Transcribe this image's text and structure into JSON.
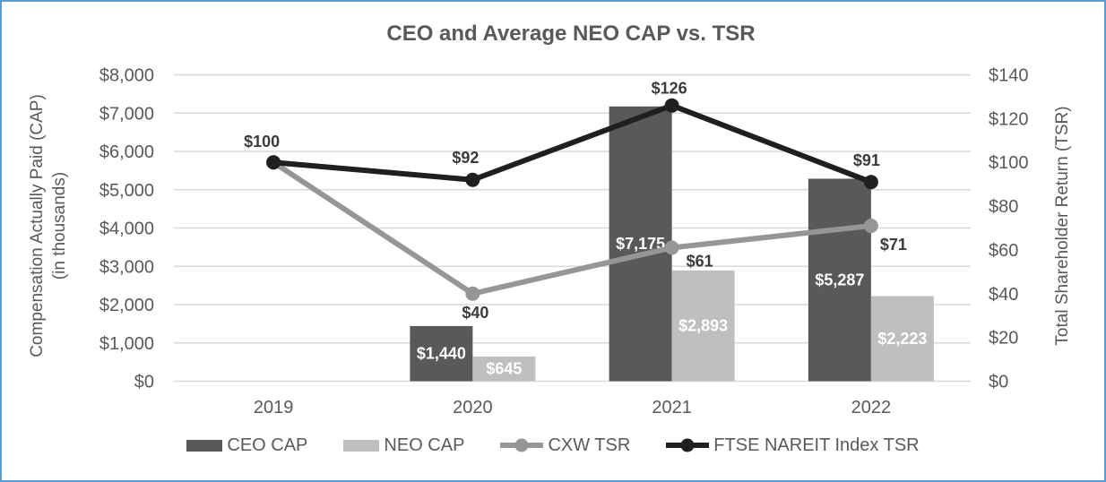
{
  "frame": {
    "border_color": "#5B9BD5",
    "background": "#FFFFFF"
  },
  "chart_data": {
    "type": "combo-bar-line",
    "title": "CEO and Average NEO CAP vs. TSR",
    "categories": [
      "2019",
      "2020",
      "2021",
      "2022"
    ],
    "bar_series": [
      {
        "name": "CEO CAP",
        "color": "#595959",
        "axis": "left",
        "values": [
          null,
          1440,
          7175,
          5287
        ],
        "labels": [
          "",
          "$1,440",
          "$7,175",
          "$5,287"
        ]
      },
      {
        "name": "NEO CAP",
        "color": "#BFBFBF",
        "axis": "left",
        "values": [
          null,
          645,
          2893,
          2223
        ],
        "labels": [
          "",
          "$645",
          "$2,893",
          "$2,223"
        ]
      }
    ],
    "line_series": [
      {
        "name": "CXW TSR",
        "color": "#969696",
        "axis": "right",
        "values": [
          100,
          40,
          61,
          71
        ],
        "labels": [
          "$100",
          "$40",
          "$61",
          "$71"
        ]
      },
      {
        "name": "FTSE NAREIT Index TSR",
        "color": "#1F1F1F",
        "axis": "right",
        "values": [
          100,
          92,
          126,
          91
        ],
        "labels": [
          "",
          "$92",
          "$126",
          "$91"
        ]
      }
    ],
    "left_axis": {
      "title_line1": "Compensation Actually Paid (CAP)",
      "title_line2": "(in thousands)",
      "min": 0,
      "max": 8000,
      "step": 1000,
      "tick_labels": [
        "$0",
        "$1,000",
        "$2,000",
        "$3,000",
        "$4,000",
        "$5,000",
        "$6,000",
        "$7,000",
        "$8,000"
      ]
    },
    "right_axis": {
      "title": "Total Shareholder Return (TSR)",
      "min": 0,
      "max": 140,
      "step": 20,
      "tick_labels": [
        "$0",
        "$20",
        "$40",
        "$60",
        "$80",
        "$100",
        "$120",
        "$140"
      ]
    },
    "legend": {
      "items": [
        {
          "label": "CEO CAP",
          "type": "bar",
          "color": "#595959"
        },
        {
          "label": "NEO CAP",
          "type": "bar",
          "color": "#BFBFBF"
        },
        {
          "label": "CXW TSR",
          "type": "line",
          "color": "#969696"
        },
        {
          "label": "FTSE NAREIT Index TSR",
          "type": "line",
          "color": "#1F1F1F"
        }
      ]
    },
    "styles": {
      "gridline_color": "#D9D9D9",
      "axis_text_color": "#595959",
      "title_color": "#595959",
      "line_label_color": "#3B3B3B",
      "bar_label_color": "#FFFFFF"
    },
    "layout_hints": {
      "grid": "horizontal",
      "legend_position": "bottom",
      "bars_missing_first_category": true
    }
  }
}
